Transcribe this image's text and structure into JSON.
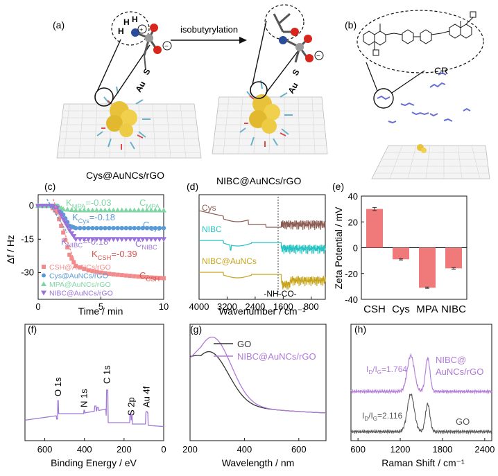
{
  "panel_labels": {
    "a": "(a)",
    "b": "(b)",
    "c": "(c)",
    "d": "(d)",
    "e": "(e)",
    "f": "(f)",
    "g": "(g)",
    "h": "(h)"
  },
  "schematic": {
    "reaction_label": "isobutyrylation",
    "left_caption": "Cys@AuNCs/rGO",
    "right_caption": "NIBC@AuNCs/rGO",
    "atom_labels": {
      "h1": "H",
      "h2": "H",
      "h3": "H",
      "n_plus": "+",
      "s": "S",
      "au": "Au",
      "minus": "−"
    },
    "cr_label": "CR",
    "colors": {
      "gold": "#e8c23a",
      "nitrogen": "#2a4d9b",
      "oxygen": "#d9261c",
      "carbon": "#9a9a9a",
      "dye": "#6a6fd6"
    }
  },
  "chart_data": [
    {
      "id": "c",
      "type": "line",
      "title": "",
      "xlabel": "Time / min",
      "ylabel": "Δf / Hz",
      "xlim": [
        0,
        10
      ],
      "ylim": [
        -42,
        5
      ],
      "xticks": [
        "0",
        "5",
        "10"
      ],
      "yticks": [
        "0",
        "-15",
        "-30"
      ],
      "series": [
        {
          "name": "CSH@AuNCs/rGO",
          "color": "#f28b8b",
          "marker": "square",
          "x": [
            0,
            0.5,
            1,
            1.5,
            2,
            2.5,
            3,
            4,
            5,
            6,
            7,
            8,
            9,
            10
          ],
          "y": [
            0,
            0,
            0,
            -3,
            -12,
            -22,
            -27,
            -29,
            -30,
            -30.8,
            -31.3,
            -31.8,
            -32.2,
            -32.5
          ]
        },
        {
          "name": "Cys@AuNCs/rGO",
          "color": "#5b9bd5",
          "marker": "circle",
          "x": [
            0,
            1,
            1.5,
            2,
            2.5,
            3,
            4,
            5,
            6,
            7,
            8,
            9,
            10
          ],
          "y": [
            0,
            0,
            0,
            -4,
            -9,
            -10,
            -10,
            -10,
            -10,
            -10,
            -10,
            -10,
            -10
          ]
        },
        {
          "name": "MPA@AuNCs/rGO",
          "color": "#7fd6a4",
          "marker": "triangle",
          "x": [
            0,
            1,
            1.5,
            2,
            3,
            4,
            5,
            6,
            7,
            8,
            9,
            10
          ],
          "y": [
            0,
            0,
            0,
            -1.5,
            -2,
            -2,
            -2,
            -2,
            -2,
            -2,
            -2,
            -2
          ]
        },
        {
          "name": "NIBC@AuNCs/rGO",
          "color": "#9b72d9",
          "marker": "triangle-down",
          "x": [
            0,
            1,
            1.5,
            2,
            2.5,
            3,
            4,
            5,
            6,
            7,
            8,
            9,
            10
          ],
          "y": [
            0,
            0,
            -1,
            -6,
            -11,
            -15,
            -15,
            -15,
            -15,
            -15,
            -15,
            -15,
            -15
          ]
        }
      ],
      "annotations": [
        {
          "text": "K",
          "sub": "MPA",
          "rest": "=-0.03",
          "color": "#7fd6a4"
        },
        {
          "text": "K",
          "sub": "Cys",
          "rest": "=-0.18",
          "color": "#5b9bd5"
        },
        {
          "text": "K",
          "sub": "NIBC",
          "rest": "=-0.18",
          "color": "#9b72d9"
        },
        {
          "text": "K",
          "sub": "CSH",
          "rest": "=-0.39",
          "color": "#d9534f"
        },
        {
          "text": "C",
          "sub": "MPA",
          "rest": "",
          "color": "#7fd6a4"
        },
        {
          "text": "C",
          "sub": "Cys",
          "rest": "",
          "color": "#5b9bd5"
        },
        {
          "text": "C",
          "sub": "NIBC",
          "rest": "",
          "color": "#9b72d9"
        },
        {
          "text": "C",
          "sub": "CSH",
          "rest": "",
          "color": "#d9534f"
        }
      ]
    },
    {
      "id": "d",
      "type": "line",
      "title": "",
      "xlabel": "Wavenumber / cm⁻¹",
      "ylabel": "",
      "xlim": [
        4000,
        400
      ],
      "xticks": [
        "4000",
        "3200",
        "2400",
        "1600",
        "800"
      ],
      "series": [
        {
          "name": "Cys",
          "color": "#8b5a52",
          "offset": 2
        },
        {
          "name": "NIBC",
          "color": "#27c2c2",
          "offset": 1
        },
        {
          "name": "NIBC@AuNCs",
          "color": "#c8a41a",
          "offset": 0
        }
      ],
      "annotation": "-NH-CO-",
      "marker_line_x": 1600
    },
    {
      "id": "e",
      "type": "bar",
      "title": "",
      "xlabel": "",
      "ylabel": "Zeta Potential / mV",
      "categories": [
        "CSH",
        "Cys",
        "MPA",
        "NIBC"
      ],
      "values": [
        30,
        -9,
        -31,
        -16
      ],
      "errors": [
        1.2,
        0.5,
        0.5,
        0.6
      ],
      "ylim": [
        -40,
        40
      ],
      "yticks": [
        "40",
        "20",
        "0",
        "-20",
        "-40"
      ],
      "color": "#f07a7a"
    },
    {
      "id": "f",
      "type": "line",
      "title": "",
      "xlabel": "Binding Energy / eV",
      "ylabel": "",
      "xlim": [
        700,
        0
      ],
      "xticks": [
        "600",
        "400",
        "200",
        "0"
      ],
      "peaks": [
        "O 1s",
        "N 1s",
        "C 1s",
        "S 2p",
        "Au 4f"
      ],
      "color": "#a27ad6"
    },
    {
      "id": "g",
      "type": "line",
      "title": "",
      "xlabel": "Wavelength / nm",
      "ylabel": "",
      "xlim": [
        200,
        700
      ],
      "xticks": [
        "200",
        "400",
        "600"
      ],
      "series": [
        {
          "name": "GO",
          "color": "#333333"
        },
        {
          "name": "NIBC@AuNCs/rGO",
          "color": "#b07ad9"
        }
      ]
    },
    {
      "id": "h",
      "type": "line",
      "title": "",
      "xlabel": "Raman Shift / cm⁻¹",
      "ylabel": "",
      "xlim": [
        500,
        2500
      ],
      "xticks": [
        "600",
        "1200",
        "1800",
        "2400"
      ],
      "series": [
        {
          "name": "NIBC@ AuNCs/rGO",
          "line1": "NIBC@",
          "line2": "AuNCs/rGO",
          "color": "#b07ad9",
          "ratio_label": "I",
          "ratio_sub1": "D",
          "ratio_mid": "/I",
          "ratio_sub2": "G",
          "ratio_value": "=1.764"
        },
        {
          "name": "GO",
          "color": "#555555",
          "ratio_label": "I",
          "ratio_sub1": "D",
          "ratio_mid": "/I",
          "ratio_sub2": "G",
          "ratio_value": "=2.116"
        }
      ]
    }
  ]
}
